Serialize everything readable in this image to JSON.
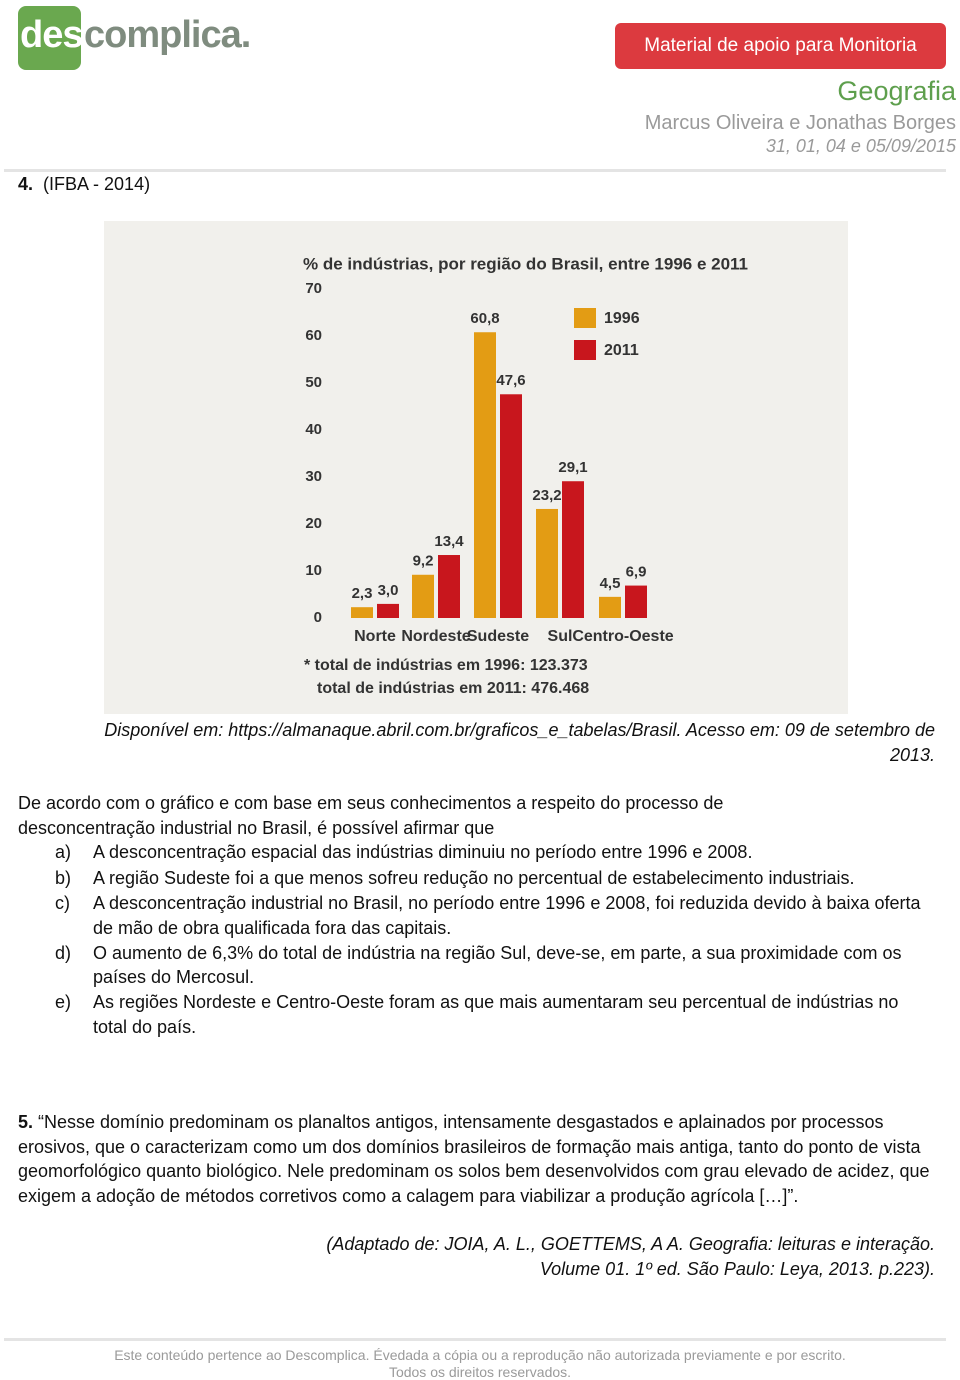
{
  "header": {
    "logo_part1": "des",
    "logo_part2": "complica.",
    "badge": "Material de apoio para Monitoria",
    "subject": "Geografia",
    "authors": "Marcus Oliveira e Jonathas Borges",
    "dates": "31, 01, 04 e 05/09/2015"
  },
  "question4": {
    "number": "4.",
    "label": "(IFBA - 2014)",
    "source": "Disponível em: https://almanaque.abril.com.br/graficos_e_tabelas/Brasil. Acesso em: 09 de setembro de 2013.",
    "stem": "De acordo com o gráfico e com base em seus conhecimentos a respeito do processo de desconcentração industrial no Brasil, é possível afirmar que",
    "options": [
      {
        "letter": "a)",
        "text": "A desconcentração espacial das indústrias diminuiu no período entre 1996 e 2008."
      },
      {
        "letter": "b)",
        "text": "A região Sudeste foi a que menos sofreu redução no percentual de estabelecimento industriais."
      },
      {
        "letter": "c)",
        "text": "A desconcentração industrial no Brasil, no período entre 1996 e 2008, foi reduzida devido à baixa oferta de mão de obra qualificada fora das capitais."
      },
      {
        "letter": "d)",
        "text": "O aumento de 6,3% do total de indústria na região Sul, deve-se, em parte, a sua proximidade com os países do Mercosul."
      },
      {
        "letter": "e)",
        "text": "As regiões Nordeste e Centro-Oeste foram as que mais aumentaram seu percentual de indústrias no total do país."
      }
    ]
  },
  "chart_data": {
    "type": "bar",
    "title": "% de indústrias, por região do Brasil, entre 1996 e 2011",
    "categories": [
      "Norte",
      "Nordeste",
      "Sudeste",
      "Sul",
      "Centro-Oeste"
    ],
    "series": [
      {
        "name": "1996",
        "color": "#e39c14",
        "values": [
          2.3,
          9.2,
          60.8,
          23.2,
          4.5
        ],
        "value_labels": [
          "2,3",
          "9,2",
          "60,8",
          "23,2",
          "4,5"
        ]
      },
      {
        "name": "2011",
        "color": "#c8161d",
        "values": [
          3.0,
          13.4,
          47.6,
          29.1,
          6.9
        ],
        "value_labels": [
          "3,0",
          "13,4",
          "47,6",
          "29,1",
          "6,9"
        ]
      }
    ],
    "ylim": [
      0,
      70
    ],
    "yticks": [
      0,
      10,
      20,
      30,
      40,
      50,
      60,
      70
    ],
    "notes": [
      "* total de indústrias em 1996: 123.373",
      "total de indústrias em 2011: 476.468"
    ]
  },
  "question5": {
    "number": "5.",
    "text": "“Nesse domínio predominam os planaltos antigos, intensamente desgastados e aplainados por processos erosivos, que o caracterizam como um dos domínios brasileiros de formação mais antiga, tanto do ponto de vista geomorfológico quanto biológico. Nele predominam os solos bem desenvolvidos com grau elevado de acidez, que exigem a adoção de métodos corretivos como a calagem para viabilizar a produção agrícola […]”.",
    "citation": "(Adaptado de: JOIA, A. L., GOETTEMS, A A. Geografia: leituras e interação. Volume 01. 1º ed. São Paulo: Leya, 2013. p.223)."
  },
  "footer": {
    "line1": "Este conteúdo pertence ao Descomplica. Évedada a cópia ou a reprodução não autorizada previamente e por escrito.",
    "line2": "Todos os direitos reservados."
  }
}
